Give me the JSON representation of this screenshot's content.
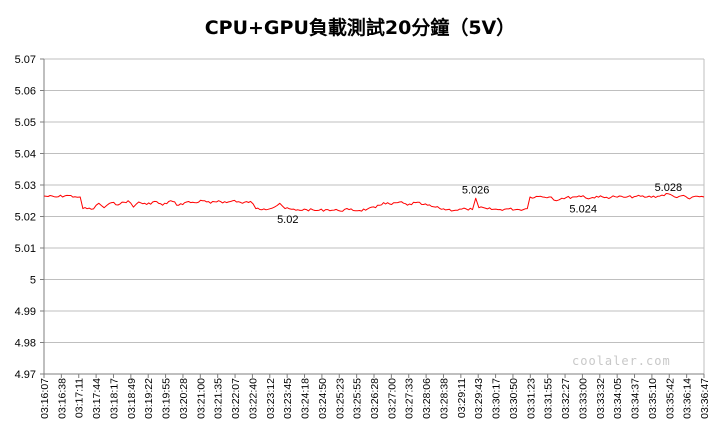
{
  "chart_data": {
    "type": "line",
    "title": "CPU+GPU負載測試20分鐘（5V）",
    "xlabel": "",
    "ylabel": "",
    "ylim": [
      4.97,
      5.07
    ],
    "yticks": [
      "5.07",
      "5.06",
      "5.05",
      "5.04",
      "5.03",
      "5.02",
      "5.01",
      "5",
      "4.99",
      "4.98",
      "4.97"
    ],
    "ytick_values": [
      5.07,
      5.06,
      5.05,
      5.04,
      5.03,
      5.02,
      5.01,
      5.0,
      4.99,
      4.98,
      4.97
    ],
    "grid": true,
    "legend": "none",
    "x_start": "03:16:07",
    "x_end": "03:36:47",
    "xticks": [
      "03:16:07",
      "03:16:38",
      "03:17:11",
      "03:17:44",
      "03:18:17",
      "03:18:49",
      "03:19:22",
      "03:19:55",
      "03:20:28",
      "03:21:00",
      "03:21:35",
      "03:22:07",
      "03:22:40",
      "03:23:12",
      "03:23:45",
      "03:24:18",
      "03:24:50",
      "03:25:23",
      "03:25:55",
      "03:26:28",
      "03:27:00",
      "03:27:33",
      "03:28:06",
      "03:28:38",
      "03:29:11",
      "03:29:43",
      "03:30:17",
      "03:30:50",
      "03:31:23",
      "03:31:55",
      "03:32:27",
      "03:33:00",
      "03:33:32",
      "03:34:05",
      "03:34:37",
      "03:35:10",
      "03:35:42",
      "03:36:14",
      "03:36:47"
    ],
    "series": [
      {
        "color": "#ff0000",
        "points": [
          [
            "03:16:07",
            5.0265
          ],
          [
            "03:16:30",
            5.0262
          ],
          [
            "03:16:50",
            5.0267
          ],
          [
            "03:17:05",
            5.0263
          ],
          [
            "03:17:15",
            5.0262
          ],
          [
            "03:17:20",
            5.0225
          ],
          [
            "03:17:40",
            5.0224
          ],
          [
            "03:17:50",
            5.0242
          ],
          [
            "03:18:00",
            5.0228
          ],
          [
            "03:18:10",
            5.0242
          ],
          [
            "03:18:30",
            5.024
          ],
          [
            "03:18:45",
            5.025
          ],
          [
            "03:18:55",
            5.023
          ],
          [
            "03:19:05",
            5.0246
          ],
          [
            "03:19:20",
            5.0238
          ],
          [
            "03:19:35",
            5.0248
          ],
          [
            "03:19:50",
            5.0236
          ],
          [
            "03:20:05",
            5.025
          ],
          [
            "03:20:20",
            5.0236
          ],
          [
            "03:20:35",
            5.0246
          ],
          [
            "03:20:50",
            5.0244
          ],
          [
            "03:21:05",
            5.025
          ],
          [
            "03:21:20",
            5.0242
          ],
          [
            "03:21:35",
            5.025
          ],
          [
            "03:21:50",
            5.0244
          ],
          [
            "03:22:05",
            5.0251
          ],
          [
            "03:22:20",
            5.0242
          ],
          [
            "03:22:35",
            5.0248
          ],
          [
            "03:22:45",
            5.0225
          ],
          [
            "03:23:00",
            5.0224
          ],
          [
            "03:23:20",
            5.023
          ],
          [
            "03:23:30",
            5.0242
          ],
          [
            "03:23:40",
            5.0225
          ],
          [
            "03:24:00",
            5.022
          ],
          [
            "03:24:20",
            5.0222
          ],
          [
            "03:24:40",
            5.0219
          ],
          [
            "03:25:00",
            5.0222
          ],
          [
            "03:25:20",
            5.0219
          ],
          [
            "03:25:40",
            5.0222
          ],
          [
            "03:26:00",
            5.0219
          ],
          [
            "03:26:15",
            5.0224
          ],
          [
            "03:26:30",
            5.0228
          ],
          [
            "03:26:45",
            5.0244
          ],
          [
            "03:27:00",
            5.0238
          ],
          [
            "03:27:15",
            5.0246
          ],
          [
            "03:27:30",
            5.0236
          ],
          [
            "03:27:45",
            5.0244
          ],
          [
            "03:28:00",
            5.0238
          ],
          [
            "03:28:15",
            5.0232
          ],
          [
            "03:28:30",
            5.0226
          ],
          [
            "03:28:45",
            5.0222
          ],
          [
            "03:29:00",
            5.022
          ],
          [
            "03:29:20",
            5.0224
          ],
          [
            "03:29:32",
            5.0222
          ],
          [
            "03:29:38",
            5.0258
          ],
          [
            "03:29:44",
            5.0228
          ],
          [
            "03:30:00",
            5.0224
          ],
          [
            "03:30:20",
            5.0222
          ],
          [
            "03:30:40",
            5.0224
          ],
          [
            "03:31:00",
            5.0222
          ],
          [
            "03:31:15",
            5.0225
          ],
          [
            "03:31:20",
            5.0262
          ],
          [
            "03:31:40",
            5.0264
          ],
          [
            "03:32:00",
            5.0262
          ],
          [
            "03:32:10",
            5.025
          ],
          [
            "03:32:20",
            5.0258
          ],
          [
            "03:32:40",
            5.0262
          ],
          [
            "03:33:00",
            5.0266
          ],
          [
            "03:33:10",
            5.0256
          ],
          [
            "03:33:25",
            5.0264
          ],
          [
            "03:33:40",
            5.026
          ],
          [
            "03:34:00",
            5.0263
          ],
          [
            "03:34:20",
            5.0261
          ],
          [
            "03:34:40",
            5.0264
          ],
          [
            "03:35:00",
            5.0262
          ],
          [
            "03:35:20",
            5.0264
          ],
          [
            "03:35:40",
            5.0272
          ],
          [
            "03:35:52",
            5.0262
          ],
          [
            "03:36:05",
            5.0266
          ],
          [
            "03:36:20",
            5.0256
          ],
          [
            "03:36:30",
            5.0264
          ],
          [
            "03:36:47",
            5.0262
          ]
        ]
      }
    ],
    "annotations": [
      {
        "text": "5.02",
        "x": "03:23:45",
        "y": 5.0192
      },
      {
        "text": "5.026",
        "x": "03:29:38",
        "y": 5.0286
      },
      {
        "text": "5.024",
        "x": "03:33:00",
        "y": 5.0226
      },
      {
        "text": "5.028",
        "x": "03:35:40",
        "y": 5.0293
      }
    ]
  },
  "watermark": "coolaler.com"
}
